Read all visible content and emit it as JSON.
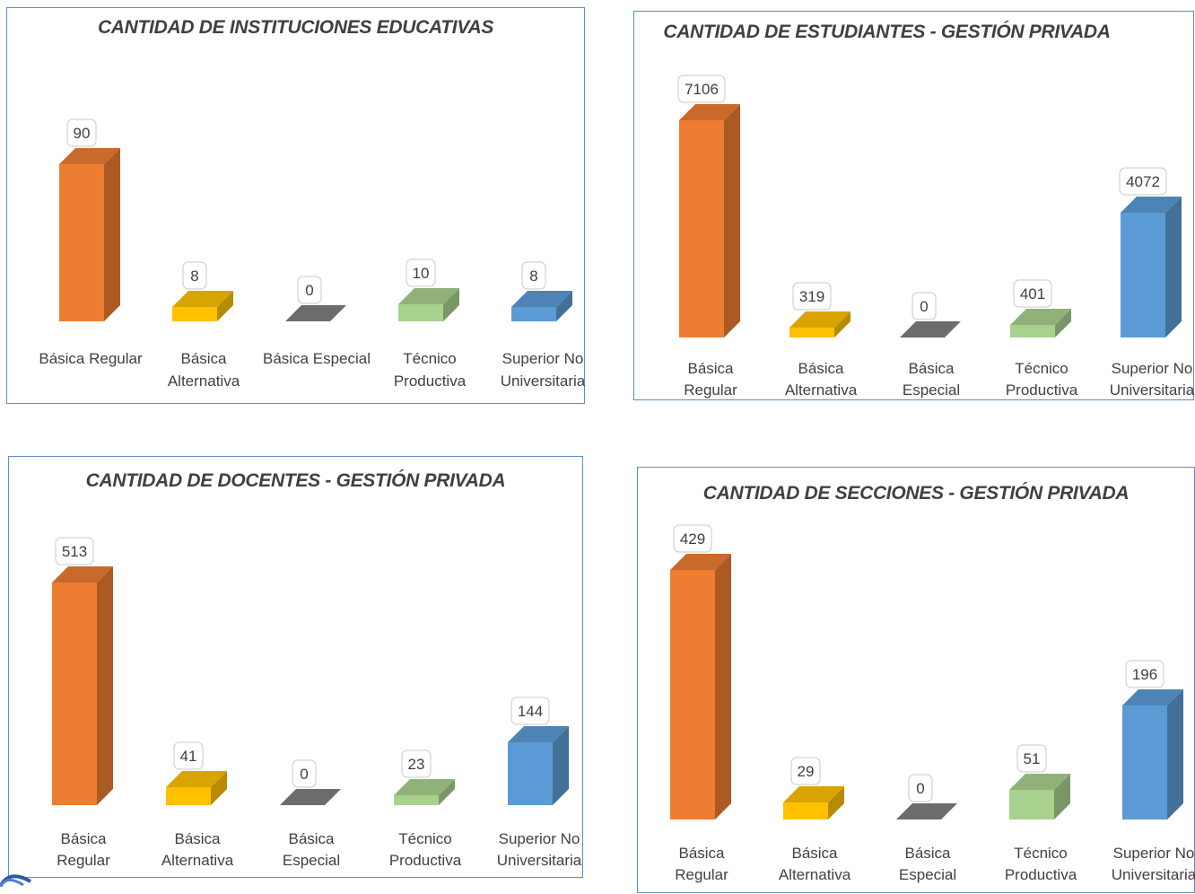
{
  "colors": {
    "basica_regular": "#ed7d31",
    "basica_alternativa": "#ffc000",
    "basica_especial": "#7f7f7f",
    "tecnico_productiva": "#a9d18e",
    "superior_no_universitaria": "#5b9bd5",
    "panel_border": "#5b8fcc",
    "text": "#404040"
  },
  "chart_data": [
    {
      "type": "bar",
      "title": "CANTIDAD DE INSTITUCIONES EDUCATIVAS",
      "categories": [
        [
          "Básica Regular"
        ],
        [
          "Básica",
          "Alternativa"
        ],
        [
          "Básica Especial"
        ],
        [
          "Técnico",
          "Productiva"
        ],
        [
          "Superior No",
          "Universitaria"
        ]
      ],
      "values": [
        90,
        8,
        0,
        10,
        8
      ],
      "data_labels": [
        "90",
        "8",
        "0",
        "10",
        "8"
      ],
      "style": "3d-column",
      "legend": "none",
      "grid": false
    },
    {
      "type": "bar",
      "title": "CANTIDAD DE ESTUDIANTES - GESTIÓN PRIVADA",
      "categories": [
        [
          "Básica",
          "Regular"
        ],
        [
          "Básica",
          "Alternativa"
        ],
        [
          "Básica",
          "Especial"
        ],
        [
          "Técnico",
          "Productiva"
        ],
        [
          "Superior No",
          "Universitaria"
        ]
      ],
      "values": [
        7106,
        319,
        0,
        401,
        4072
      ],
      "data_labels": [
        "7106",
        "319",
        "0",
        "401",
        "4072"
      ],
      "style": "3d-column",
      "legend": "none",
      "grid": false
    },
    {
      "type": "bar",
      "title": "CANTIDAD DE DOCENTES - GESTIÓN PRIVADA",
      "categories": [
        [
          "Básica",
          "Regular"
        ],
        [
          "Básica",
          "Alternativa"
        ],
        [
          "Básica",
          "Especial"
        ],
        [
          "Técnico",
          "Productiva"
        ],
        [
          "Superior No",
          "Universitaria"
        ]
      ],
      "values": [
        513,
        41,
        0,
        23,
        144
      ],
      "data_labels": [
        "513",
        "41",
        "0",
        "23",
        "144"
      ],
      "style": "3d-column",
      "legend": "none",
      "grid": false
    },
    {
      "type": "bar",
      "title": "CANTIDAD DE SECCIONES - GESTIÓN PRIVADA",
      "categories": [
        [
          "Básica",
          "Regular"
        ],
        [
          "Básica",
          "Alternativa"
        ],
        [
          "Básica",
          "Especial"
        ],
        [
          "Técnico",
          "Productiva"
        ],
        [
          "Superior No",
          "Universitaria"
        ]
      ],
      "values": [
        429,
        29,
        0,
        51,
        196
      ],
      "data_labels": [
        "429",
        "29",
        "0",
        "51",
        "196"
      ],
      "style": "3d-column",
      "legend": "none",
      "grid": false
    }
  ]
}
